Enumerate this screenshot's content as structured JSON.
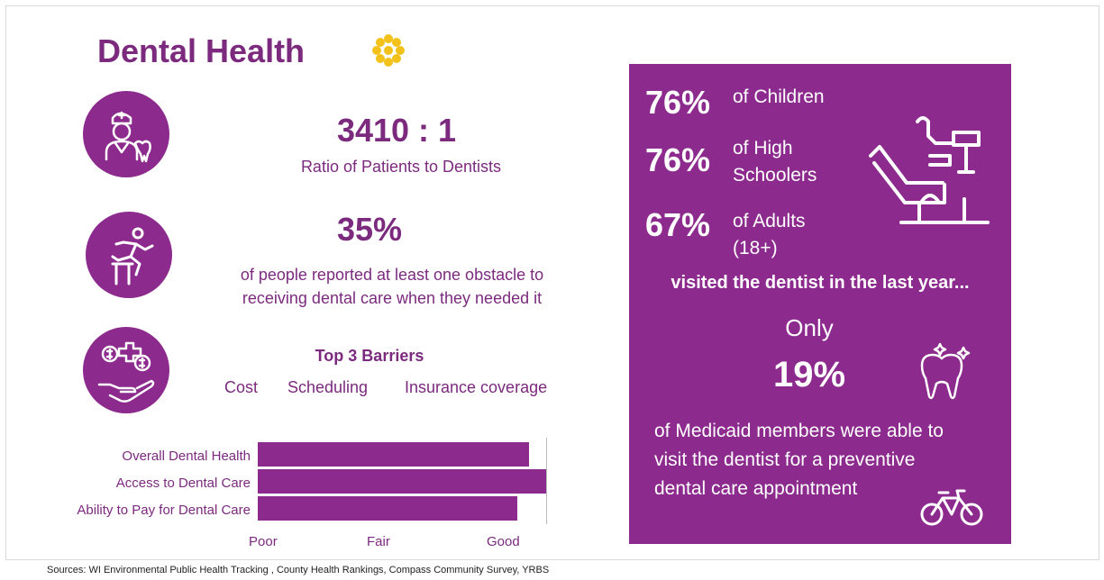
{
  "title": "Dental Health",
  "stat1": {
    "value": "3410 : 1",
    "caption": "Ratio of Patients to Dentists"
  },
  "stat2": {
    "value": "35%",
    "caption_line1": "of people reported at least one obstacle to",
    "caption_line2": "receiving dental care when they needed it"
  },
  "barriers": {
    "heading": "Top 3 Barriers",
    "items": [
      "Cost",
      "Scheduling",
      "Insurance coverage"
    ]
  },
  "chart_data": {
    "type": "bar",
    "orientation": "horizontal",
    "categories": [
      "Overall Dental Health",
      "Access to Dental Care",
      "Ability to Pay for Dental Care"
    ],
    "values": [
      0.94,
      1.0,
      0.9
    ],
    "x_ticks": [
      "Poor",
      "Fair",
      "Good"
    ],
    "title": "",
    "xlabel": "",
    "ylabel": "",
    "color": "#8c2a8e"
  },
  "panel": {
    "row1": {
      "pct": "76%",
      "label_line1": "of Children",
      "label_line2": ""
    },
    "row2": {
      "pct": "76%",
      "label_line1": "of High",
      "label_line2": "Schoolers"
    },
    "row3": {
      "pct": "67%",
      "label_line1": "of Adults",
      "label_line2": "(18+)"
    },
    "visited": "visited the dentist in the last year...",
    "only": "Only",
    "medicaid_pct": "19%",
    "medicaid_line1": "of Medicaid members were able to",
    "medicaid_line2": "visit the dentist for a preventive",
    "medicaid_line3": "dental care appointment"
  },
  "footer": "Sources: WI Environmental Public Health Tracking , County Health Rankings, Compass Community Survey, YRBS",
  "colors": {
    "accent": "#8c2a8e",
    "text": "#7b2a7e",
    "flower": "#f3c21a"
  },
  "icons": [
    "dentist-icon",
    "hurdle-runner-icon",
    "money-health-hand-icon",
    "dental-chair-icon",
    "sparkling-tooth-icon",
    "bicycle-icon",
    "flower-icon"
  ]
}
